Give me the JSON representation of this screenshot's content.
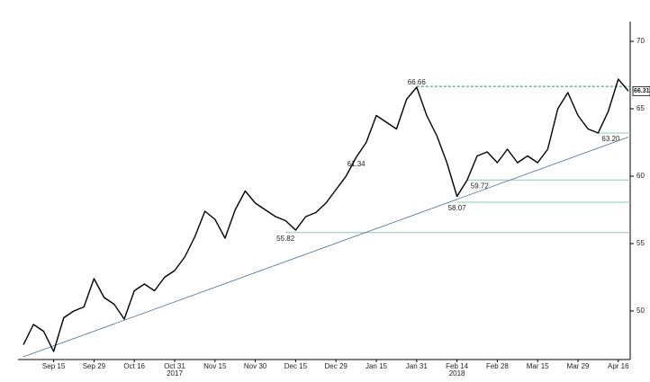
{
  "chart_data": {
    "type": "line",
    "categories": [
      null,
      null,
      null,
      "Sep 15",
      null,
      null,
      null,
      "Sep 29",
      null,
      null,
      null,
      "Oct 16",
      null,
      null,
      null,
      "Oct 31",
      null,
      null,
      null,
      "Nov 15",
      null,
      null,
      null,
      "Nov 30",
      null,
      null,
      null,
      "Dec 15",
      null,
      null,
      null,
      "Dec 29",
      null,
      null,
      null,
      "Jan 15",
      null,
      null,
      null,
      "Jan 31",
      null,
      null,
      null,
      "Feb 14",
      null,
      null,
      null,
      "Feb 28",
      null,
      null,
      null,
      "Mar 15",
      null,
      null,
      null,
      "Mar 29",
      null,
      null,
      null,
      "Apr 16",
      null
    ],
    "year_labels": [
      {
        "category": 15,
        "label": "2017"
      },
      {
        "category": 43,
        "label": "2018"
      }
    ],
    "series": [
      {
        "color": "#000000",
        "values": [
          47.5,
          49,
          48.5,
          47,
          49.5,
          50,
          50.3,
          52.4,
          51,
          50.5,
          49.4,
          51.5,
          52,
          51.5,
          52.5,
          53,
          54,
          55.5,
          57.4,
          56.8,
          55.4,
          57.5,
          58.9,
          58,
          57.5,
          57,
          56.7,
          56,
          57,
          57.3,
          58,
          59,
          60,
          61.4,
          62.5,
          64.5,
          64,
          63.5,
          65.7,
          66.6,
          64.5,
          63,
          61,
          58.5,
          59.7,
          61.5,
          61.8,
          61,
          62,
          61,
          61.5,
          61,
          62,
          65,
          66.2,
          64.5,
          63.5,
          63.2,
          64.8,
          67.2,
          66.31
        ]
      }
    ],
    "annotations": [
      {
        "value": 66.66,
        "category": 39,
        "line": "dashed"
      },
      {
        "value": 61.34,
        "category": 33
      },
      {
        "value": 55.82,
        "category": 26,
        "line": "solid"
      },
      {
        "value": 58.07,
        "category": 43,
        "line": "solid"
      },
      {
        "value": 59.72,
        "category": 44,
        "line": "solid"
      },
      {
        "value": 63.2,
        "label": "63.20",
        "category": 57,
        "line": "solid"
      }
    ],
    "trendline": {
      "color": "#4a6f8f",
      "start": [
        0,
        46.6
      ],
      "end": [
        60,
        62.9
      ]
    },
    "last_price": 66.31,
    "ylim": [
      46.4,
      71.2
    ],
    "yticks": [
      50,
      55,
      60,
      65,
      70
    ],
    "axis_side": "right"
  }
}
